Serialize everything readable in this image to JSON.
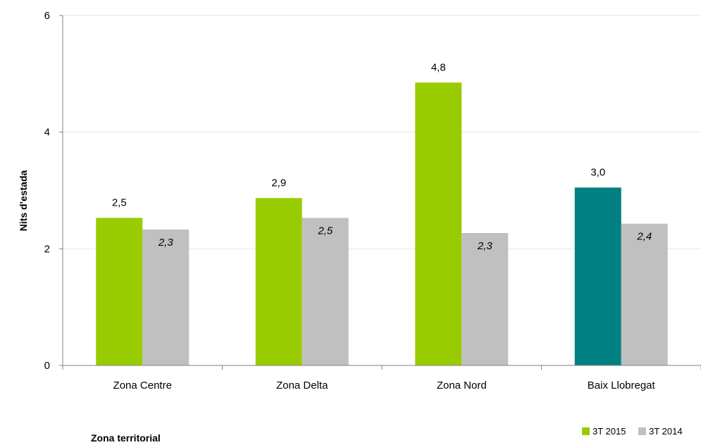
{
  "chart_data": {
    "type": "bar",
    "categories": [
      "Zona Centre",
      "Zona Delta",
      "Zona Nord",
      "Baix Llobregat"
    ],
    "series": [
      {
        "name": "3T 2015",
        "values": [
          2.53,
          2.87,
          4.85,
          3.05
        ],
        "labels": [
          "2,5",
          "2,9",
          "4,8",
          "3,0"
        ],
        "color": "#99cc00",
        "point_colors": [
          "#99cc00",
          "#99cc00",
          "#99cc00",
          "#008080"
        ]
      },
      {
        "name": "3T 2014",
        "values": [
          2.33,
          2.53,
          2.27,
          2.43
        ],
        "labels": [
          "2,3",
          "2,5",
          "2,3",
          "2,4"
        ],
        "color": "#c0c0c0",
        "italic_labels": true
      }
    ],
    "ylabel": "Nits d'estada",
    "xlabel": "Zona territorial",
    "ylim": [
      0,
      6
    ],
    "yticks": [
      0,
      2,
      4,
      6
    ],
    "grid": true,
    "legend_position": "bottom-right"
  }
}
